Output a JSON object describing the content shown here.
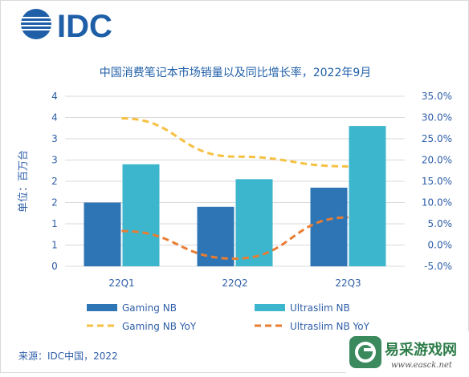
{
  "logo": {
    "text": "IDC"
  },
  "source": "来源：IDC中国，2022",
  "watermark": {
    "text": "易采游戏网",
    "url": "www.easck.net"
  },
  "colors": {
    "gaming_bar": "#2e75b6",
    "ultraslim_bar": "#3cb6cc",
    "gaming_line": "#f6c143",
    "ultraslim_line": "#e97d32",
    "logo": "#1f5fa8",
    "title": "#1f5fa8",
    "axis_text": "#2e5ea8",
    "grid": "#d9d9d9"
  },
  "chart_data": {
    "type": "bar",
    "title": "中国消费笔记本市场销量以及同比增长率，2022年9月",
    "ylabel": "单位：百万台",
    "categories": [
      "22Q1",
      "22Q2",
      "22Q3"
    ],
    "ylim": [
      0,
      4
    ],
    "y_ticks": [
      0,
      0.5,
      1,
      1.5,
      2,
      2.5,
      3,
      3.5,
      4
    ],
    "y_tick_labels": [
      "0",
      "1",
      "1",
      "2",
      "2",
      "3",
      "3",
      "4",
      "4"
    ],
    "y2lim": [
      -5,
      35
    ],
    "y2_ticks": [
      -5,
      0,
      5,
      10,
      15,
      20,
      25,
      30,
      35
    ],
    "y2_tick_labels": [
      "-5.0%",
      "0.0%",
      "5.0%",
      "10.0%",
      "15.0%",
      "20.0%",
      "25.0%",
      "30.0%",
      "35.0%"
    ],
    "grid": true,
    "legend_position": "bottom",
    "series": [
      {
        "name": "Gaming NB",
        "kind": "bar",
        "axis": "left",
        "values": [
          1.5,
          1.4,
          1.85
        ]
      },
      {
        "name": "Ultraslim NB",
        "kind": "bar",
        "axis": "left",
        "values": [
          2.4,
          2.05,
          3.3
        ]
      },
      {
        "name": "Gaming NB YoY",
        "kind": "line",
        "style": "dashed",
        "axis": "right",
        "values": [
          29.8,
          20.8,
          18.5
        ]
      },
      {
        "name": "Ultraslim NB YoY",
        "kind": "line",
        "style": "dashed",
        "axis": "right",
        "values": [
          3.3,
          -3.2,
          6.5
        ]
      }
    ]
  }
}
